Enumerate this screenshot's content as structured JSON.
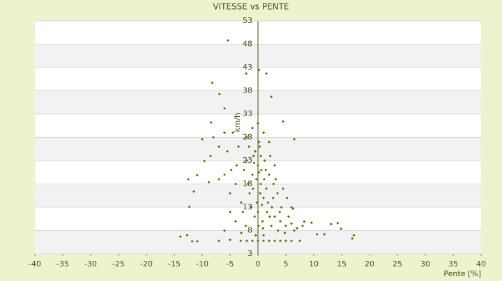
{
  "chart_data": {
    "type": "scatter",
    "title": "VITESSE vs PENTE",
    "x_label": "Pente [%]",
    "y_label": "km/h",
    "color": "#6b6b00",
    "grid": true,
    "xlim": [
      -40,
      40
    ],
    "xticks": [
      -40,
      -35,
      -30,
      -25,
      -20,
      -15,
      -10,
      -5,
      0,
      5,
      10,
      15,
      20,
      25,
      30,
      35,
      40
    ],
    "ylim": [
      3,
      53
    ],
    "yticks": [
      3,
      8,
      13,
      18,
      23,
      28,
      33,
      38,
      43,
      48,
      53
    ],
    "x": [
      -5.4,
      0.2,
      1.5,
      -2.1,
      -8.2,
      -6.9,
      2.4,
      -6,
      4.5,
      6.5,
      -10,
      -8.4,
      14.3,
      14.9,
      16.9,
      17.2,
      13.1,
      9.6,
      8.3,
      6.3,
      10.6,
      11.9,
      -13.9,
      -12.7,
      -11.8,
      -10.9,
      -12.5,
      -11.5,
      -12.3,
      -10.9,
      -9.6,
      -8.8,
      -7,
      -5,
      -3.1,
      -1,
      0,
      0.5,
      1,
      -0.5,
      0.2,
      -2,
      2,
      1.5,
      -1.5,
      0,
      0.8,
      2.5,
      3,
      4,
      5,
      6,
      7,
      8,
      -3,
      -4,
      -5,
      -6,
      -7,
      -2.5,
      -0.8,
      0.3,
      1.2,
      2.2,
      0.6,
      -0.3,
      1.8,
      3.5,
      4.2,
      2.8,
      -1.2,
      -0.6,
      0.1,
      1,
      0,
      1,
      2,
      3,
      4,
      5,
      6,
      -1,
      -2,
      7.5,
      -3.5,
      -4.5,
      -2,
      -1,
      0,
      -6,
      -7,
      -8,
      -8.5,
      3,
      2,
      1,
      -1.8,
      0.4,
      1.6,
      2.4,
      3.6,
      4.8,
      5.5,
      6.5,
      -2.2,
      -3,
      -4,
      -5,
      -6,
      -0.2,
      0.7,
      -0.9,
      1.1,
      0.5,
      -1.6,
      2.7,
      3.2,
      -2.7,
      0.9,
      -0.4,
      4.5,
      5.2,
      -3.8,
      -4.8,
      0.2,
      -0.7,
      1.4,
      2.1,
      3.9,
      -5.5,
      6
    ],
    "y": [
      48.8,
      42.5,
      41.7,
      41.7,
      39.7,
      37.3,
      36.7,
      34.2,
      31.4,
      27.6,
      27.6,
      31.2,
      9.6,
      8.4,
      6.3,
      7,
      9.4,
      9.7,
      9.9,
      12.7,
      7.2,
      7.2,
      6.7,
      7,
      5.7,
      5.7,
      19,
      16.4,
      13.1,
      19.9,
      22.9,
      18.4,
      5.8,
      6,
      5.8,
      20,
      22,
      18,
      15,
      25,
      27,
      23,
      20,
      17,
      16,
      12,
      10,
      13,
      11,
      10,
      9,
      9.5,
      8.5,
      9,
      14,
      18,
      16,
      20,
      19,
      21,
      24,
      26,
      23,
      24,
      21,
      19,
      14,
      16,
      13,
      18,
      13,
      11,
      9,
      7,
      5.8,
      5.8,
      5.8,
      5.8,
      5.8,
      5.8,
      5.8,
      5.8,
      5.8,
      5.8,
      26,
      29,
      28,
      30,
      31,
      29,
      26,
      28,
      24,
      22,
      27,
      29,
      18,
      16,
      12,
      9,
      8,
      7.5,
      11,
      8,
      9,
      7.5,
      10,
      12,
      8,
      14,
      13.5,
      17,
      19,
      24,
      26,
      15,
      19,
      12,
      8.5,
      7,
      17,
      15,
      22,
      21,
      20.5,
      22.5,
      21,
      11,
      12,
      25,
      13
    ]
  }
}
